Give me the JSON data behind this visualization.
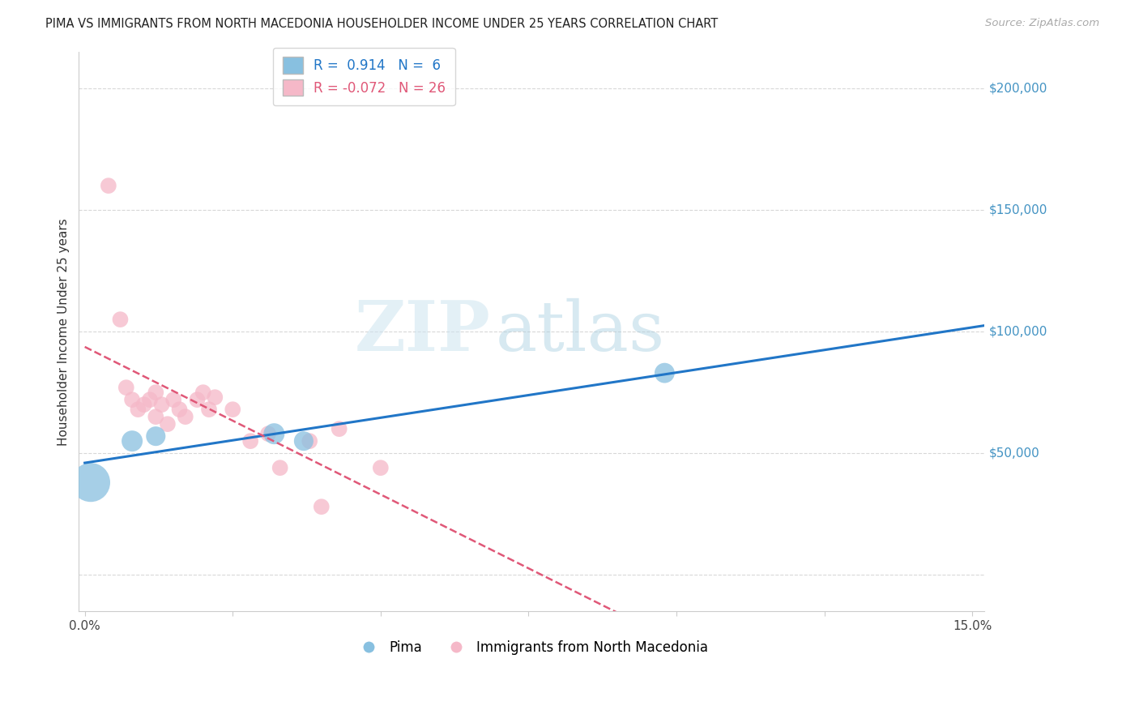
{
  "title": "PIMA VS IMMIGRANTS FROM NORTH MACEDONIA HOUSEHOLDER INCOME UNDER 25 YEARS CORRELATION CHART",
  "source": "Source: ZipAtlas.com",
  "ylabel": "Householder Income Under 25 years",
  "watermark_zip": "ZIP",
  "watermark_atlas": "atlas",
  "pima_legend": "Pima",
  "immig_legend": "Immigrants from North Macedonia",
  "blue_color": "#88c0e0",
  "pink_color": "#f5b8c8",
  "blue_line_color": "#2176c7",
  "pink_line_color": "#e05878",
  "ylim": [
    -15000,
    215000
  ],
  "xlim": [
    -0.001,
    0.152
  ],
  "yticks": [
    0,
    50000,
    100000,
    150000,
    200000
  ],
  "xticks": [
    0.0,
    0.025,
    0.05,
    0.075,
    0.1,
    0.125,
    0.15
  ],
  "xtick_labels": [
    "0.0%",
    "",
    "",
    "",
    "",
    "",
    "15.0%"
  ],
  "R_pima": 0.914,
  "N_pima": 6,
  "R_immig": -0.072,
  "N_immig": 26,
  "pima_x": [
    0.001,
    0.008,
    0.012,
    0.032,
    0.037,
    0.098
  ],
  "pima_y": [
    38000,
    55000,
    57000,
    58000,
    55000,
    83000
  ],
  "pima_size": [
    1200,
    350,
    300,
    350,
    300,
    320
  ],
  "immig_x": [
    0.004,
    0.006,
    0.007,
    0.008,
    0.009,
    0.01,
    0.011,
    0.012,
    0.012,
    0.013,
    0.014,
    0.015,
    0.016,
    0.017,
    0.019,
    0.02,
    0.021,
    0.022,
    0.025,
    0.028,
    0.031,
    0.033,
    0.038,
    0.04,
    0.043,
    0.05
  ],
  "immig_y": [
    160000,
    105000,
    77000,
    72000,
    68000,
    70000,
    72000,
    65000,
    75000,
    70000,
    62000,
    72000,
    68000,
    65000,
    72000,
    75000,
    68000,
    73000,
    68000,
    55000,
    58000,
    44000,
    55000,
    28000,
    60000,
    44000
  ],
  "immig_size": [
    200,
    200,
    200,
    200,
    200,
    200,
    200,
    200,
    200,
    200,
    200,
    200,
    200,
    200,
    200,
    200,
    200,
    200,
    200,
    200,
    200,
    200,
    200,
    200,
    200,
    200
  ],
  "grid_color": "#d8d8d8",
  "spine_color": "#cccccc",
  "ytick_label_color": "#4393c3",
  "title_fontsize": 10.5,
  "source_fontsize": 9.5,
  "axis_label_fontsize": 11,
  "tick_fontsize": 11
}
